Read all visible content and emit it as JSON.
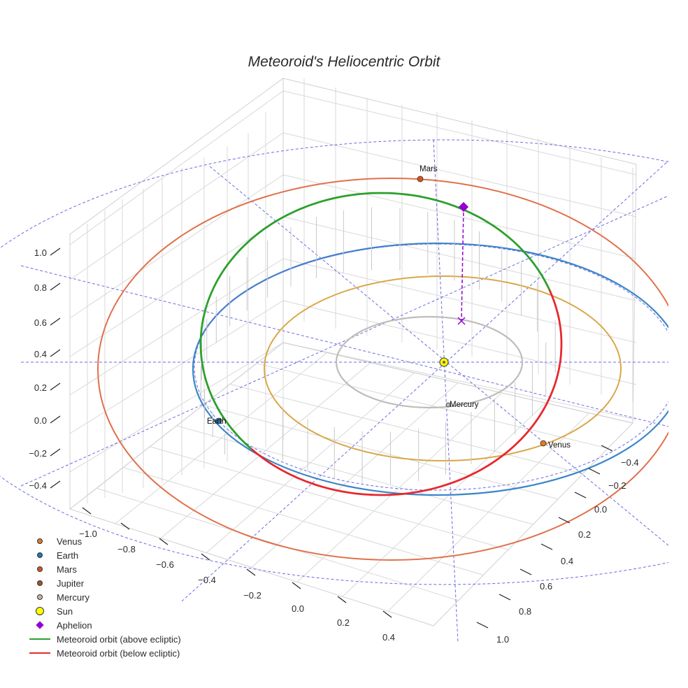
{
  "chart_data": {
    "type": "scatter3d",
    "title": "Meteoroid's Heliocentric Orbit",
    "x_ticks": [
      "−1.0",
      "−0.8",
      "−0.6",
      "−0.4",
      "−0.2",
      "0.0",
      "0.2",
      "0.4"
    ],
    "y_ticks": [
      "−0.4",
      "−0.2",
      "0.0",
      "0.2",
      "0.4",
      "0.6",
      "0.8",
      "1.0"
    ],
    "z_ticks": [
      "1.0",
      "0.8",
      "0.6",
      "0.4",
      "0.2",
      "0.0",
      "−0.2",
      "−0.4"
    ],
    "planets": [
      {
        "name": "Mercury",
        "label": "Mercury",
        "color": "#c8b4a8",
        "orbit_color": "#c0bcba"
      },
      {
        "name": "Venus",
        "label": "Venus",
        "color": "#e07b20",
        "orbit_color": "#d9a84a"
      },
      {
        "name": "Earth",
        "label": "Earth",
        "color": "#1f77b4",
        "orbit_color": "#3a86c8"
      },
      {
        "name": "Mars",
        "label": "Mars",
        "color": "#d9531e",
        "orbit_color": "#e0704a"
      },
      {
        "name": "Jupiter",
        "label": "",
        "color": "#a0522d",
        "orbit_color": "#6a6ae0"
      }
    ],
    "sun": {
      "name": "Sun",
      "color": "#ffff00"
    },
    "aphelion": {
      "name": "Aphelion",
      "color": "#9400d3"
    },
    "meteoroid_orbit": {
      "above": {
        "name": "Meteoroid orbit (above ecliptic)",
        "color": "#2ca02c"
      },
      "below": {
        "name": "Meteoroid orbit (below ecliptic)",
        "color": "#e8282d"
      }
    }
  },
  "legend": [
    {
      "label": "Venus",
      "kind": "dot",
      "color": "#e07b20"
    },
    {
      "label": "Earth",
      "kind": "dot",
      "color": "#1f77b4"
    },
    {
      "label": "Mars",
      "kind": "dot",
      "color": "#d9531e"
    },
    {
      "label": "Jupiter",
      "kind": "dot",
      "color": "#a0522d"
    },
    {
      "label": "Mercury",
      "kind": "dot",
      "color": "#c8b4a8"
    },
    {
      "label": "Sun",
      "kind": "sun",
      "color": "#ffff00"
    },
    {
      "label": "Aphelion",
      "kind": "diamond",
      "color": "#9400d3"
    },
    {
      "label": "Meteoroid orbit (above ecliptic)",
      "kind": "line",
      "color": "#2ca02c"
    },
    {
      "label": "Meteoroid orbit (below ecliptic)",
      "kind": "line",
      "color": "#e8282d"
    }
  ]
}
